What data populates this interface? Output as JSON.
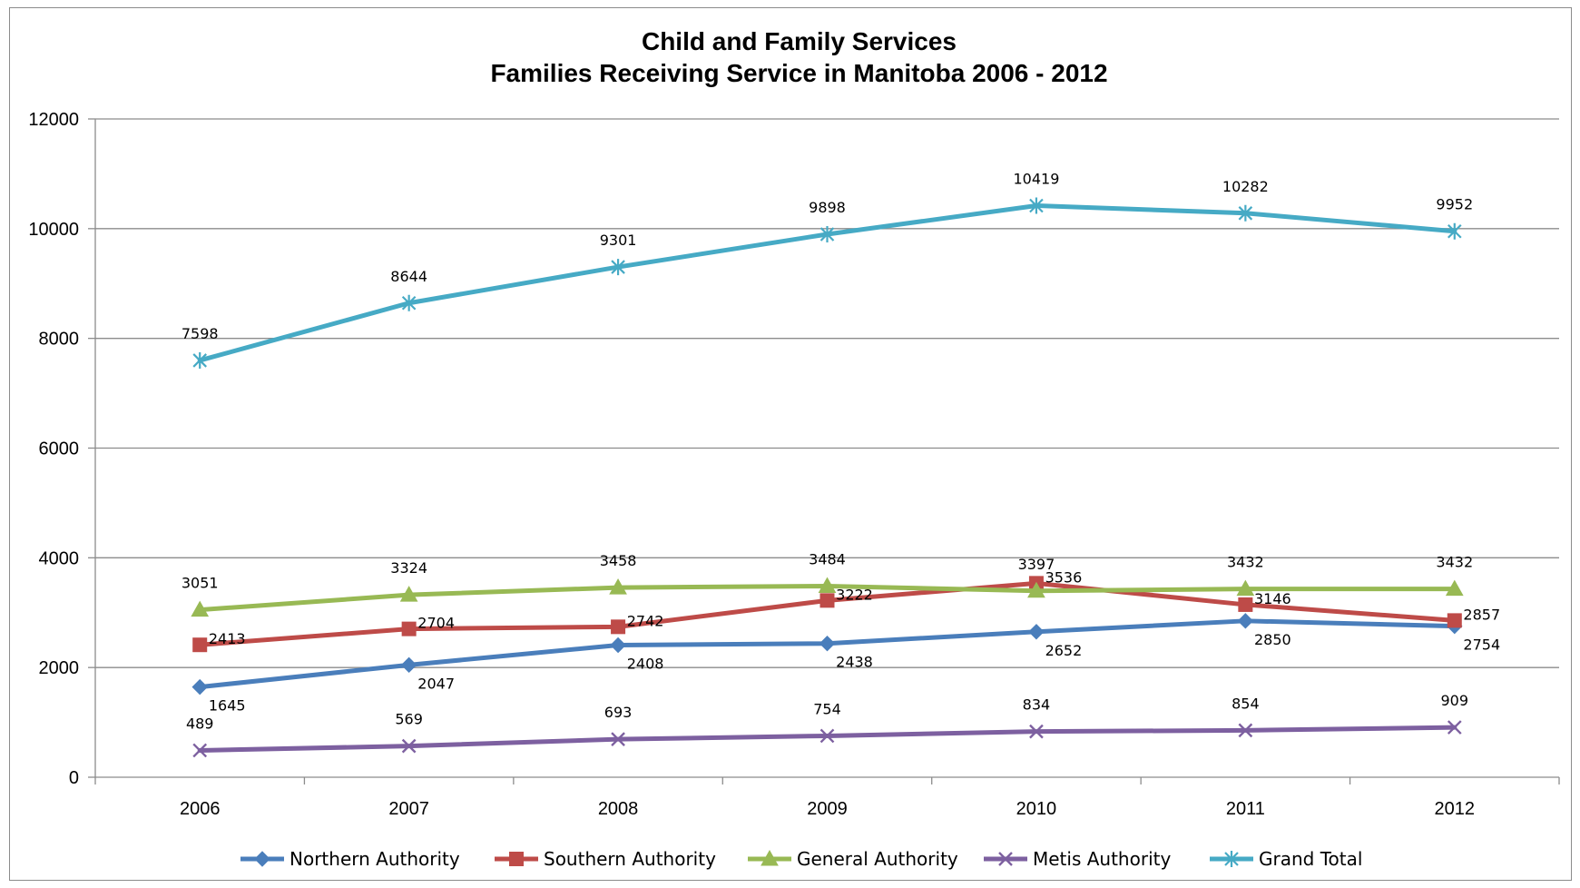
{
  "chart_data": {
    "type": "line",
    "title": "Child and Family Services",
    "subtitle": "Families  Receiving Service in Manitoba 2006 - 2012",
    "xlabel": "",
    "ylabel": "",
    "categories": [
      "2006",
      "2007",
      "2008",
      "2009",
      "2010",
      "2011",
      "2012"
    ],
    "ylim": [
      0,
      12000
    ],
    "yticks": [
      0,
      2000,
      4000,
      6000,
      8000,
      10000,
      12000
    ],
    "grid": true,
    "legend_position": "bottom",
    "series": [
      {
        "name": "Northern Authority",
        "color": "#4a7ebb",
        "marker": "diamond",
        "values": [
          1645,
          2047,
          2408,
          2438,
          2652,
          2850,
          2754
        ],
        "label_position": "below"
      },
      {
        "name": "Southern Authority",
        "color": "#be4b48",
        "marker": "square",
        "values": [
          2413,
          2704,
          2742,
          3222,
          3536,
          3146,
          2857
        ],
        "label_position": "right"
      },
      {
        "name": "General Authority",
        "color": "#98b954",
        "marker": "triangle",
        "values": [
          3051,
          3324,
          3458,
          3484,
          3397,
          3432,
          3432
        ],
        "label_position": "above"
      },
      {
        "name": "Metis Authority",
        "color": "#7d60a0",
        "marker": "x",
        "values": [
          489,
          569,
          693,
          754,
          834,
          854,
          909
        ],
        "label_position": "above"
      },
      {
        "name": "Grand Total",
        "color": "#46aac5",
        "marker": "star",
        "values": [
          7598,
          8644,
          9301,
          9898,
          10419,
          10282,
          9952
        ],
        "label_position": "above"
      }
    ]
  }
}
